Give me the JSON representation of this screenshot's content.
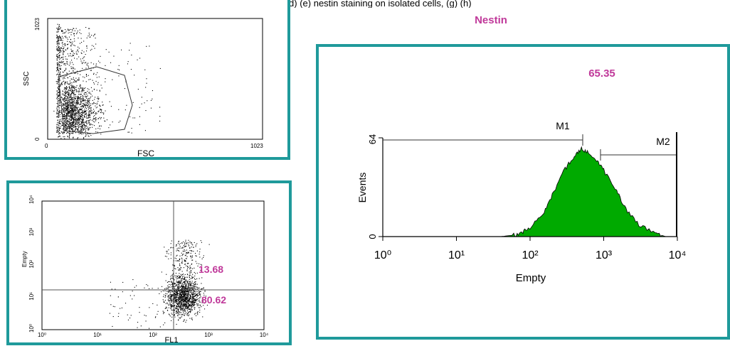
{
  "page": {
    "heading_clip": "(a) (c) (d) (e) nestin staining on isolated cells, (g) (h)",
    "title": "Nestin",
    "accent": "#1f9a9b",
    "label_color": "#c0399a"
  },
  "scatter_panel": {
    "xlabel": "FSC",
    "ylabel": "SSC",
    "x_ticks": [
      "0",
      "1023"
    ],
    "y_ticks": [
      "0",
      "1023"
    ]
  },
  "quadrant_panel": {
    "xlabel": "FL1",
    "ylabel": "Empty",
    "upper_right_pct": "13.68",
    "lower_right_pct": "80.62",
    "x_ticks": [
      "10⁰",
      "10¹",
      "10²",
      "10³",
      "10⁴"
    ],
    "y_ticks": [
      "10⁰",
      "10¹",
      "10²",
      "10³",
      "10⁴"
    ]
  },
  "histogram_panel": {
    "marker_value": "65.35",
    "xlabel": "Empty",
    "ylabel": "Events",
    "y_ticks": [
      "0",
      "64"
    ],
    "markers": [
      "M1",
      "M2"
    ],
    "x_ticks": [
      "10⁰",
      "10¹",
      "10²",
      "10³",
      "10⁴"
    ]
  },
  "chart_data": [
    {
      "type": "scatter",
      "title": "",
      "xlabel": "FSC",
      "ylabel": "SSC",
      "xlim": [
        0,
        1023
      ],
      "ylim": [
        0,
        1023
      ],
      "gate": "polygon",
      "grid": false
    },
    {
      "type": "scatter",
      "title": "",
      "xlabel": "FL1",
      "ylabel": "Empty",
      "x_scale": "log",
      "y_scale": "log",
      "xlim": [
        1,
        10000
      ],
      "ylim": [
        1,
        10000
      ],
      "quadrant_x": 200,
      "quadrant_y": 20,
      "quadrant_values": {
        "upper_right": 13.68,
        "lower_right": 80.62
      }
    },
    {
      "type": "area",
      "title": "Nestin",
      "xlabel": "Empty",
      "ylabel": "Events",
      "x_scale": "log",
      "xlim": [
        1,
        10000
      ],
      "ylim": [
        0,
        64
      ],
      "fill": "#00aa00",
      "x": [
        40,
        60,
        80,
        100,
        150,
        200,
        300,
        400,
        500,
        600,
        800,
        1000,
        1500,
        2000,
        3000,
        5000,
        7000
      ],
      "values": [
        0,
        1,
        3,
        6,
        15,
        27,
        44,
        52,
        57,
        55,
        50,
        43,
        29,
        18,
        8,
        2,
        0
      ],
      "markers": [
        {
          "name": "M1",
          "from": 1,
          "to": 500
        },
        {
          "name": "M2",
          "from": 800,
          "to": 9500
        }
      ],
      "marker_value": 65.35
    }
  ]
}
